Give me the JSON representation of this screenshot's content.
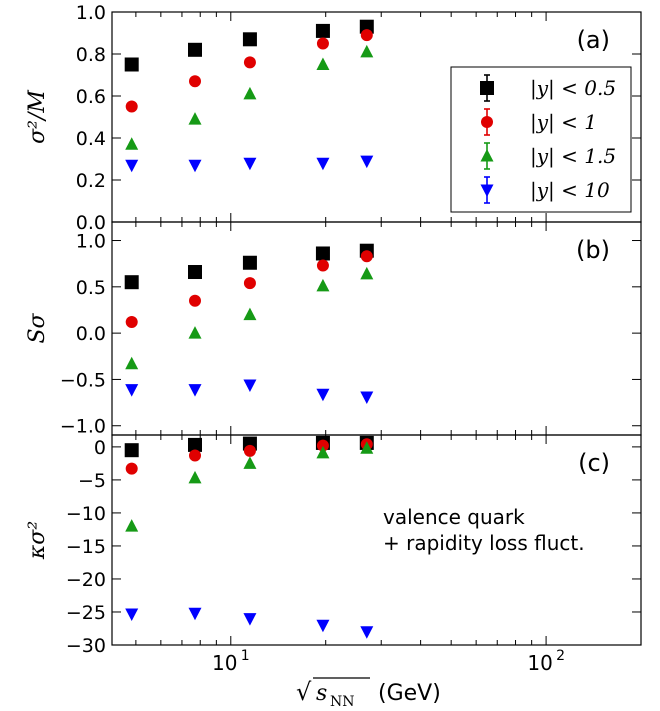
{
  "chart_data": {
    "type": "scatter",
    "x_scale": "log",
    "x_range": [
      4.2,
      200
    ],
    "x_ticks": [
      {
        "value": 10,
        "label": "10",
        "exp": "1"
      },
      {
        "value": 100,
        "label": "10",
        "exp": "2"
      }
    ],
    "x": [
      4.85,
      7.7,
      11.5,
      19.6,
      27
    ],
    "xlabel": {
      "prefix": "√",
      "var": "s",
      "sub": "NN",
      "unit": "(GeV)"
    },
    "legend": {
      "position": "inside right of panel a",
      "entries": [
        {
          "series": 0,
          "label": "|y| < 0.5"
        },
        {
          "series": 1,
          "label": "|y| < 1"
        },
        {
          "series": 2,
          "label": "|y| < 1.5"
        },
        {
          "series": 3,
          "label": "|y| < 10"
        }
      ]
    },
    "series_styles": [
      {
        "marker": "square",
        "color": "#000000"
      },
      {
        "marker": "circle",
        "color": "#e00000"
      },
      {
        "marker": "triangle-up",
        "color": "#169a16"
      },
      {
        "marker": "triangle-down",
        "color": "#0000ff"
      }
    ],
    "panels": [
      {
        "tag": "(a)",
        "ylabel": "σ²/M",
        "ylim": [
          0,
          1.0
        ],
        "yticks": [
          "0.0",
          "0.2",
          "0.4",
          "0.6",
          "0.8",
          "1.0"
        ],
        "ytick_values": [
          0,
          0.2,
          0.4,
          0.6,
          0.8,
          1.0
        ],
        "series": [
          {
            "values": [
              0.75,
              0.82,
              0.87,
              0.91,
              0.93
            ]
          },
          {
            "values": [
              0.55,
              0.67,
              0.76,
              0.85,
              0.89
            ]
          },
          {
            "values": [
              0.37,
              0.49,
              0.61,
              0.75,
              0.81
            ]
          },
          {
            "values": [
              0.27,
              0.27,
              0.28,
              0.28,
              0.29
            ]
          }
        ]
      },
      {
        "tag": "(b)",
        "ylabel": "Sσ",
        "ylim": [
          -1.1,
          1.2
        ],
        "yticks": [
          "−1.0",
          "−0.5",
          "0.0",
          "0.5",
          "1.0"
        ],
        "ytick_values": [
          -1.0,
          -0.5,
          0,
          0.5,
          1.0
        ],
        "series": [
          {
            "values": [
              0.55,
              0.66,
              0.76,
              0.86,
              0.89
            ]
          },
          {
            "values": [
              0.12,
              0.35,
              0.54,
              0.73,
              0.83
            ]
          },
          {
            "values": [
              -0.33,
              0.0,
              0.2,
              0.51,
              0.64
            ]
          },
          {
            "values": [
              -0.61,
              -0.61,
              -0.56,
              -0.66,
              -0.69
            ]
          }
        ]
      },
      {
        "tag": "(c)",
        "ylabel": "κσ²",
        "ylim": [
          -30,
          1.8
        ],
        "yticks": [
          "−30",
          "−25",
          "−20",
          "−15",
          "−10",
          "−5",
          "0"
        ],
        "ytick_values": [
          -30,
          -25,
          -20,
          -15,
          -10,
          -5,
          0
        ],
        "annotation": [
          "valence quark",
          "+ rapidity loss fluct."
        ],
        "series": [
          {
            "values": [
              -0.5,
              0.3,
              0.5,
              0.6,
              0.6
            ]
          },
          {
            "values": [
              -3.3,
              -1.3,
              -0.6,
              0.2,
              0.4
            ]
          },
          {
            "values": [
              -12.0,
              -4.7,
              -2.5,
              -0.9,
              -0.2
            ]
          },
          {
            "values": [
              -25.3,
              -25.2,
              -26.0,
              -27.0,
              -28.0
            ]
          }
        ]
      }
    ]
  }
}
